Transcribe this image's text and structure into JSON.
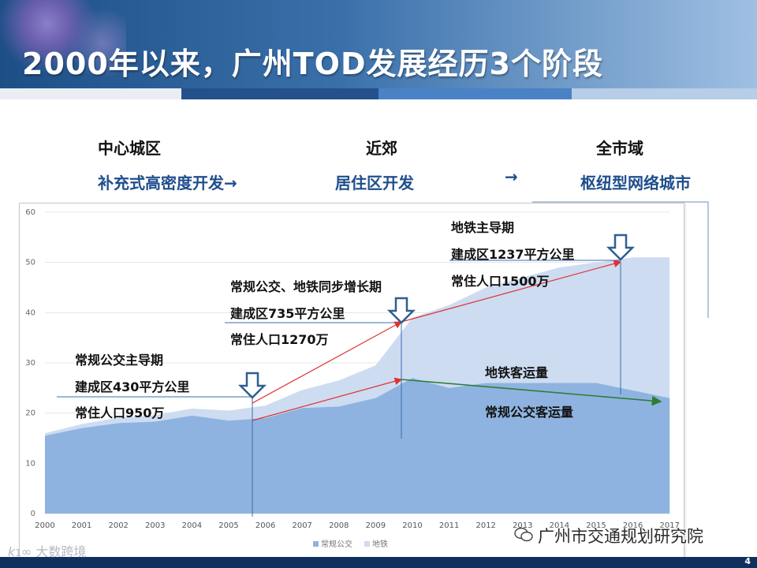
{
  "slide": {
    "title": "2000年以来，广州TOD发展经历3个阶段",
    "page_number": "4"
  },
  "stages": [
    {
      "name": "中心城区",
      "desc": "补充式高密度开发→"
    },
    {
      "name": "近郊",
      "desc": "居住区开发"
    },
    {
      "name": "全市域",
      "desc": "枢纽型网络城市"
    }
  ],
  "arrow_between": "→",
  "annotations": {
    "phase1": {
      "line1": "常规公交主导期",
      "line2": "建成区430平方公里",
      "line3": "常住人口950万"
    },
    "phase2": {
      "line1": "常规公交、地铁同步增长期",
      "line2": "建成区735平方公里",
      "line3": "常住人口1270万"
    },
    "phase3": {
      "line1": "地铁主导期",
      "line2": "建成区1237平方公里",
      "line3": "常住人口1500万"
    },
    "metro_label": "地铁客运量",
    "bus_label": "常规公交客运量"
  },
  "chart_data": {
    "type": "area",
    "stacked": true,
    "x": [
      2000,
      2001,
      2002,
      2003,
      2004,
      2005,
      2006,
      2007,
      2008,
      2009,
      2010,
      2011,
      2012,
      2013,
      2014,
      2015,
      2016,
      2017
    ],
    "series": [
      {
        "name": "常规公交",
        "color": "#8eb3e0",
        "values": [
          15.5,
          17,
          18,
          18.3,
          19.5,
          18.5,
          19,
          21,
          21.3,
          23,
          27,
          25,
          26,
          26,
          26,
          26,
          24.5,
          23
        ]
      },
      {
        "name": "地铁",
        "color": "#cddcf1",
        "values": [
          0.5,
          0.8,
          1.1,
          1.3,
          1.4,
          2,
          2.5,
          3.6,
          5.2,
          6.5,
          12,
          16.5,
          19,
          21,
          23,
          24,
          26.5,
          28
        ]
      }
    ],
    "ylim": [
      0,
      60
    ],
    "yticks": [
      0,
      10,
      20,
      30,
      40,
      50,
      60
    ],
    "legend_position": "bottom",
    "title": "",
    "xlabel": "",
    "ylabel": ""
  },
  "watermarks": {
    "left": "大数跨境",
    "right": "广州市交通规划研究院"
  },
  "colors": {
    "header_dark": "#1d4f86",
    "stage_desc": "#1f4e8c",
    "trend_red": "#e03030",
    "trend_green": "#2e7d32",
    "marker_arrow": "#2f5f8f"
  }
}
